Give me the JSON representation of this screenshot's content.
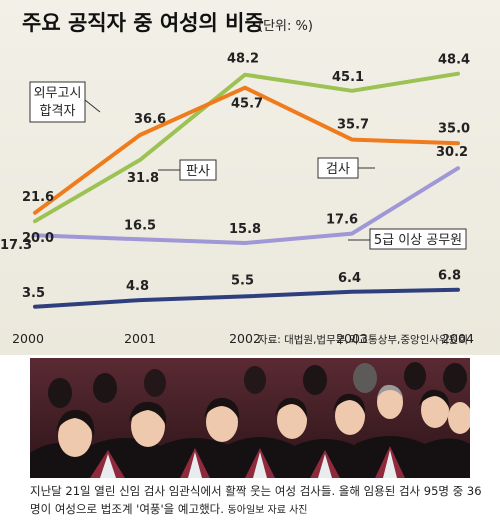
{
  "header": {
    "title": "주요 공직자 중 여성의 비중",
    "unit": "(단위: %)"
  },
  "source": "자료: 대법원,법무부,외교통상부,중앙인사위원회",
  "caption": {
    "text": "지난달 21일 열린 신임 검사 임관식에서 활짝 웃는 여성 검사들. 올해 임용된 검사 95명 중 36명이 여성으로 법조계 '여풍'을 예고했다.",
    "credit": "동아일보 자료 사진"
  },
  "chart_data": {
    "type": "line",
    "title": "주요 공직자 중 여성의 비중",
    "ylabel": "(단위: %)",
    "x": [
      "2000",
      "2001",
      "2002",
      "2003",
      "2004"
    ],
    "ylim": [
      0,
      52
    ],
    "grid": false,
    "series": [
      {
        "name": "외무고시 합격자",
        "color": "#f07b1c",
        "values": [
          21.6,
          36.6,
          45.7,
          35.7,
          35.0
        ]
      },
      {
        "name": "판사",
        "color": "#9cc254",
        "values": [
          20.0,
          31.8,
          48.2,
          45.1,
          48.4
        ]
      },
      {
        "name": "검사",
        "color": "#9f97d6",
        "values": [
          17.3,
          16.5,
          15.8,
          17.6,
          30.2
        ]
      },
      {
        "name": "5급 이상 공무원",
        "color": "#2f3f7e",
        "values": [
          3.5,
          4.8,
          5.5,
          6.4,
          6.8
        ]
      }
    ]
  }
}
